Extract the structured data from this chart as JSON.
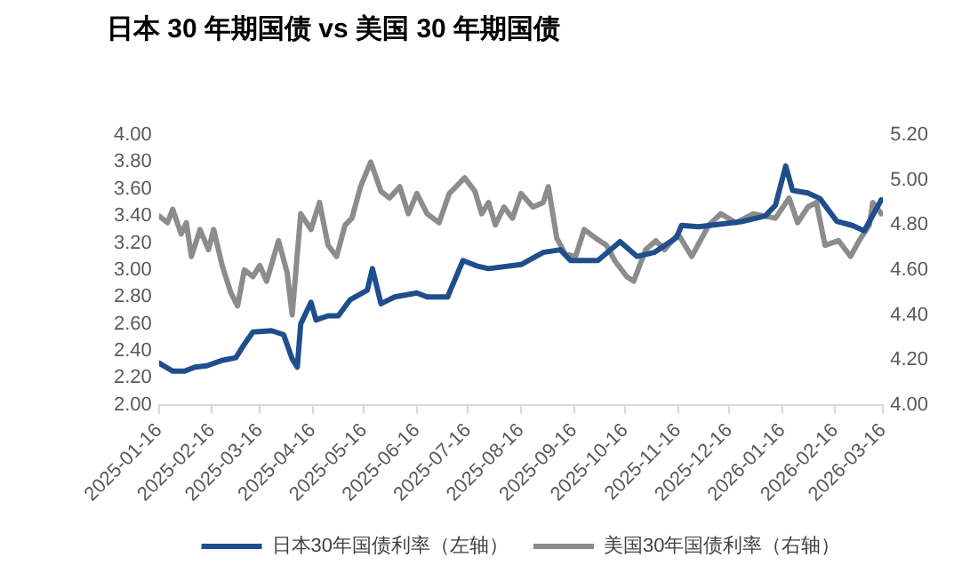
{
  "chart_data": {
    "type": "line",
    "title": "日本 30 年期国债 vs 美国 30 年期国债",
    "series": [
      {
        "name": "日本30年国债利率（左轴）",
        "color": "#1f4e8c",
        "axis": "y",
        "x": [
          "2025-01-16",
          "2025-01-24",
          "2025-01-31",
          "2025-02-06",
          "2025-02-13",
          "2025-02-22",
          "2025-03-02",
          "2025-03-07",
          "2025-03-12",
          "2025-03-23",
          "2025-03-30",
          "2025-04-04",
          "2025-04-07",
          "2025-04-09",
          "2025-04-15",
          "2025-04-18",
          "2025-04-25",
          "2025-05-01",
          "2025-05-08",
          "2025-05-18",
          "2025-05-21",
          "2025-05-26",
          "2025-06-03",
          "2025-06-16",
          "2025-06-22",
          "2025-07-04",
          "2025-07-13",
          "2025-07-21",
          "2025-07-28",
          "2025-08-16",
          "2025-08-29",
          "2025-09-08",
          "2025-09-14",
          "2025-09-30",
          "2025-10-13",
          "2025-10-23",
          "2025-11-02",
          "2025-11-15",
          "2025-11-18",
          "2025-11-28",
          "2025-12-11",
          "2025-12-24",
          "2026-01-06",
          "2026-01-12",
          "2026-01-18",
          "2026-01-22",
          "2026-01-31",
          "2026-02-07",
          "2026-02-17",
          "2026-02-26",
          "2026-03-05",
          "2026-03-15"
        ],
        "values": [
          2.31,
          2.25,
          2.25,
          2.28,
          2.29,
          2.33,
          2.35,
          2.45,
          2.54,
          2.55,
          2.52,
          2.34,
          2.28,
          2.6,
          2.76,
          2.63,
          2.66,
          2.66,
          2.78,
          2.85,
          3.01,
          2.75,
          2.8,
          2.83,
          2.8,
          2.8,
          3.07,
          3.03,
          3.01,
          3.04,
          3.13,
          3.15,
          3.07,
          3.07,
          3.21,
          3.1,
          3.13,
          3.24,
          3.33,
          3.32,
          3.34,
          3.36,
          3.4,
          3.48,
          3.77,
          3.59,
          3.57,
          3.53,
          3.36,
          3.33,
          3.29,
          3.52
        ]
      },
      {
        "name": "美国30年国债利率（右轴）",
        "color": "#8c8c8c",
        "axis": "y2",
        "x": [
          "2025-01-16",
          "2025-01-21",
          "2025-01-24",
          "2025-01-29",
          "2025-02-01",
          "2025-02-04",
          "2025-02-09",
          "2025-02-14",
          "2025-02-17",
          "2025-02-22",
          "2025-02-27",
          "2025-03-03",
          "2025-03-07",
          "2025-03-12",
          "2025-03-16",
          "2025-03-20",
          "2025-03-27",
          "2025-04-01",
          "2025-04-04",
          "2025-04-09",
          "2025-04-15",
          "2025-04-20",
          "2025-04-25",
          "2025-04-30",
          "2025-05-05",
          "2025-05-09",
          "2025-05-14",
          "2025-05-20",
          "2025-05-26",
          "2025-05-31",
          "2025-06-06",
          "2025-06-11",
          "2025-06-16",
          "2025-06-22",
          "2025-06-29",
          "2025-07-05",
          "2025-07-14",
          "2025-07-20",
          "2025-07-24",
          "2025-07-28",
          "2025-08-01",
          "2025-08-06",
          "2025-08-11",
          "2025-08-16",
          "2025-08-23",
          "2025-08-29",
          "2025-09-01",
          "2025-09-06",
          "2025-09-11",
          "2025-09-17",
          "2025-09-22",
          "2025-09-29",
          "2025-10-05",
          "2025-10-10",
          "2025-10-17",
          "2025-10-21",
          "2025-10-28",
          "2025-11-03",
          "2025-11-08",
          "2025-11-16",
          "2025-11-24",
          "2025-12-04",
          "2025-12-11",
          "2025-12-20",
          "2025-12-30",
          "2026-01-12",
          "2026-01-20",
          "2026-01-25",
          "2026-01-31",
          "2026-02-05",
          "2026-02-10",
          "2026-02-18",
          "2026-02-25",
          "2026-03-02",
          "2026-03-08",
          "2026-03-10",
          "2026-03-15"
        ],
        "values": [
          4.84,
          4.81,
          4.87,
          4.76,
          4.81,
          4.66,
          4.78,
          4.69,
          4.78,
          4.62,
          4.5,
          4.44,
          4.6,
          4.57,
          4.62,
          4.55,
          4.73,
          4.59,
          4.4,
          4.85,
          4.78,
          4.9,
          4.71,
          4.66,
          4.8,
          4.83,
          4.97,
          5.08,
          4.95,
          4.92,
          4.97,
          4.85,
          4.94,
          4.85,
          4.81,
          4.94,
          5.01,
          4.95,
          4.85,
          4.9,
          4.8,
          4.88,
          4.83,
          4.94,
          4.88,
          4.9,
          4.97,
          4.74,
          4.67,
          4.66,
          4.78,
          4.74,
          4.71,
          4.64,
          4.57,
          4.55,
          4.69,
          4.73,
          4.69,
          4.76,
          4.66,
          4.8,
          4.85,
          4.81,
          4.85,
          4.83,
          4.92,
          4.81,
          4.88,
          4.9,
          4.71,
          4.73,
          4.66,
          4.73,
          4.8,
          4.9,
          4.85
        ]
      }
    ],
    "xlim": [
      "2025-01-16",
      "2026-03-16"
    ],
    "xticks": [
      "2025-01-16",
      "2025-02-16",
      "2025-03-16",
      "2025-04-16",
      "2025-05-16",
      "2025-06-16",
      "2025-07-16",
      "2025-08-16",
      "2025-09-16",
      "2025-10-16",
      "2025-11-16",
      "2025-12-16",
      "2026-01-16",
      "2026-02-16",
      "2026-03-16"
    ],
    "ylim": [
      2,
      4
    ],
    "yticks": [
      {
        "value": 2,
        "label": "2.00"
      },
      {
        "value": 2.2,
        "label": "2.20"
      },
      {
        "value": 2.4,
        "label": "2.40"
      },
      {
        "value": 2.6,
        "label": "2.60"
      },
      {
        "value": 2.8,
        "label": "2.80"
      },
      {
        "value": 3,
        "label": "3.00"
      },
      {
        "value": 3.2,
        "label": "3.20"
      },
      {
        "value": 3.4,
        "label": "3.40"
      },
      {
        "value": 3.6,
        "label": "3.60"
      },
      {
        "value": 3.8,
        "label": "3.80"
      },
      {
        "value": 4,
        "label": "4.00"
      }
    ],
    "y2lim": [
      4,
      5.2
    ],
    "y2ticks": [
      {
        "value": 4,
        "label": "4.00"
      },
      {
        "value": 4.2,
        "label": "4.20"
      },
      {
        "value": 4.4,
        "label": "4.40"
      },
      {
        "value": 4.6,
        "label": "4.60"
      },
      {
        "value": 4.8,
        "label": "4.80"
      },
      {
        "value": 5,
        "label": "5.00"
      },
      {
        "value": 5.2,
        "label": "5.20"
      }
    ],
    "grid": false,
    "legend": "bottom",
    "marker": "none",
    "line_style": "solid"
  }
}
